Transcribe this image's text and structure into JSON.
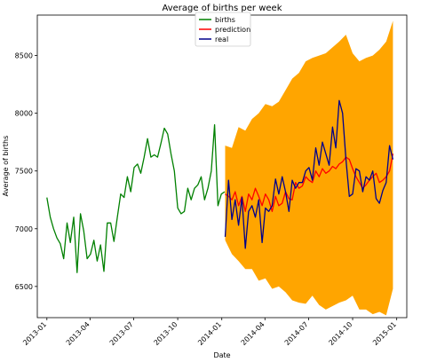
{
  "chart_data": {
    "type": "line",
    "title": "Average of births per week",
    "xlabel": "Date",
    "ylabel": "Average of births",
    "xlim": [
      "2012-12-12",
      "2015-01-22"
    ],
    "ylim": [
      6230,
      8850
    ],
    "yticks": [
      6500,
      7000,
      7500,
      8000,
      8500
    ],
    "xticks": [
      {
        "date": "2013-01-01",
        "label": "2013-01"
      },
      {
        "date": "2013-04-01",
        "label": "2013-04"
      },
      {
        "date": "2013-07-01",
        "label": "2013-07"
      },
      {
        "date": "2013-10-01",
        "label": "2013-10"
      },
      {
        "date": "2014-01-01",
        "label": "2014-01"
      },
      {
        "date": "2014-04-01",
        "label": "2014-04"
      },
      {
        "date": "2014-07-01",
        "label": "2014-07"
      },
      {
        "date": "2014-10-01",
        "label": "2014-10"
      },
      {
        "date": "2015-01-01",
        "label": "2015-01"
      }
    ],
    "legend": {
      "placement": "top-center"
    },
    "series": [
      {
        "name": "births",
        "color": "#008000",
        "x": [
          "2013-01-01",
          "2013-01-08",
          "2013-01-15",
          "2013-01-22",
          "2013-01-29",
          "2013-02-05",
          "2013-02-12",
          "2013-02-19",
          "2013-02-26",
          "2013-03-05",
          "2013-03-12",
          "2013-03-19",
          "2013-03-26",
          "2013-04-02",
          "2013-04-09",
          "2013-04-16",
          "2013-04-23",
          "2013-04-30",
          "2013-05-07",
          "2013-05-14",
          "2013-05-21",
          "2013-05-28",
          "2013-06-04",
          "2013-06-11",
          "2013-06-18",
          "2013-06-25",
          "2013-07-02",
          "2013-07-09",
          "2013-07-16",
          "2013-07-23",
          "2013-07-30",
          "2013-08-06",
          "2013-08-13",
          "2013-08-20",
          "2013-08-27",
          "2013-09-03",
          "2013-09-10",
          "2013-09-17",
          "2013-09-24",
          "2013-10-01",
          "2013-10-08",
          "2013-10-15",
          "2013-10-22",
          "2013-10-29",
          "2013-11-05",
          "2013-11-12",
          "2013-11-19",
          "2013-11-26",
          "2013-12-03",
          "2013-12-10",
          "2013-12-17",
          "2013-12-24",
          "2013-12-31",
          "2014-01-07"
        ],
        "values": [
          7270,
          7100,
          7000,
          6920,
          6870,
          6740,
          7050,
          6880,
          7100,
          6620,
          7130,
          6980,
          6740,
          6780,
          6900,
          6720,
          6860,
          6630,
          7050,
          7050,
          6890,
          7100,
          7300,
          7270,
          7450,
          7320,
          7530,
          7560,
          7480,
          7620,
          7780,
          7620,
          7640,
          7620,
          7740,
          7870,
          7820,
          7650,
          7500,
          7180,
          7130,
          7150,
          7350,
          7250,
          7350,
          7380,
          7450,
          7250,
          7350,
          7500,
          7900,
          7200,
          7300,
          7320
        ]
      },
      {
        "name": "prediction",
        "color": "#ff0000",
        "x": [
          "2014-01-08",
          "2014-01-15",
          "2014-01-22",
          "2014-01-29",
          "2014-02-05",
          "2014-02-12",
          "2014-02-19",
          "2014-02-26",
          "2014-03-05",
          "2014-03-12",
          "2014-03-19",
          "2014-03-26",
          "2014-04-02",
          "2014-04-09",
          "2014-04-16",
          "2014-04-23",
          "2014-04-30",
          "2014-05-07",
          "2014-05-14",
          "2014-05-21",
          "2014-05-28",
          "2014-06-04",
          "2014-06-11",
          "2014-06-18",
          "2014-06-25",
          "2014-07-02",
          "2014-07-09",
          "2014-07-16",
          "2014-07-23",
          "2014-07-30",
          "2014-08-06",
          "2014-08-13",
          "2014-08-20",
          "2014-08-27",
          "2014-09-03",
          "2014-09-10",
          "2014-09-17",
          "2014-09-24",
          "2014-10-01",
          "2014-10-08",
          "2014-10-15",
          "2014-10-22",
          "2014-10-29",
          "2014-11-05",
          "2014-11-12",
          "2014-11-19",
          "2014-11-26",
          "2014-12-03",
          "2014-12-10",
          "2014-12-17",
          "2014-12-24"
        ],
        "values": [
          7300,
          7280,
          7250,
          7320,
          7200,
          7280,
          7150,
          7300,
          7250,
          7350,
          7280,
          7200,
          7300,
          7250,
          7150,
          7280,
          7200,
          7220,
          7320,
          7260,
          7250,
          7400,
          7350,
          7370,
          7450,
          7420,
          7400,
          7500,
          7450,
          7520,
          7480,
          7500,
          7540,
          7520,
          7560,
          7580,
          7620,
          7600,
          7520,
          7450,
          7400,
          7350,
          7380,
          7420,
          7450,
          7480,
          7400,
          7420,
          7450,
          7500,
          7650
        ]
      },
      {
        "name": "real",
        "color": "#00008b",
        "x": [
          "2014-01-08",
          "2014-01-15",
          "2014-01-22",
          "2014-01-29",
          "2014-02-05",
          "2014-02-12",
          "2014-02-19",
          "2014-02-26",
          "2014-03-05",
          "2014-03-12",
          "2014-03-19",
          "2014-03-26",
          "2014-04-02",
          "2014-04-09",
          "2014-04-16",
          "2014-04-23",
          "2014-04-30",
          "2014-05-07",
          "2014-05-14",
          "2014-05-21",
          "2014-05-28",
          "2014-06-04",
          "2014-06-11",
          "2014-06-18",
          "2014-06-25",
          "2014-07-02",
          "2014-07-09",
          "2014-07-16",
          "2014-07-23",
          "2014-07-30",
          "2014-08-06",
          "2014-08-13",
          "2014-08-20",
          "2014-08-27",
          "2014-09-03",
          "2014-09-10",
          "2014-09-17",
          "2014-09-24",
          "2014-10-01",
          "2014-10-08",
          "2014-10-15",
          "2014-10-22",
          "2014-10-29",
          "2014-11-05",
          "2014-11-12",
          "2014-11-19",
          "2014-11-26",
          "2014-12-03",
          "2014-12-10",
          "2014-12-17",
          "2014-12-24"
        ],
        "values": [
          6930,
          7420,
          7080,
          7250,
          7030,
          7270,
          6830,
          7150,
          7200,
          7100,
          7250,
          6880,
          7180,
          7150,
          7200,
          7430,
          7300,
          7450,
          7320,
          7150,
          7420,
          7350,
          7400,
          7400,
          7500,
          7530,
          7420,
          7700,
          7550,
          7750,
          7650,
          7550,
          7880,
          7700,
          8110,
          8000,
          7600,
          7280,
          7300,
          7520,
          7500,
          7320,
          7450,
          7420,
          7500,
          7260,
          7220,
          7330,
          7400,
          7720,
          7600
        ]
      }
    ],
    "band": {
      "color": "#ffa500",
      "x": [
        "2014-01-08",
        "2014-01-22",
        "2014-02-05",
        "2014-02-19",
        "2014-03-05",
        "2014-03-19",
        "2014-04-02",
        "2014-04-16",
        "2014-04-30",
        "2014-05-14",
        "2014-05-28",
        "2014-06-11",
        "2014-06-25",
        "2014-07-09",
        "2014-07-23",
        "2014-08-06",
        "2014-08-20",
        "2014-09-03",
        "2014-09-17",
        "2014-10-01",
        "2014-10-15",
        "2014-10-29",
        "2014-11-12",
        "2014-11-26",
        "2014-12-10",
        "2014-12-24"
      ],
      "upper": [
        7720,
        7700,
        7880,
        7850,
        7950,
        8000,
        8080,
        8060,
        8100,
        8200,
        8300,
        8350,
        8450,
        8480,
        8500,
        8520,
        8570,
        8620,
        8680,
        8520,
        8450,
        8480,
        8500,
        8550,
        8620,
        8800
      ],
      "lower": [
        6900,
        6780,
        6720,
        6650,
        6650,
        6550,
        6570,
        6480,
        6500,
        6450,
        6380,
        6360,
        6350,
        6420,
        6340,
        6300,
        6330,
        6360,
        6380,
        6420,
        6300,
        6300,
        6260,
        6280,
        6250,
        6480
      ]
    }
  }
}
